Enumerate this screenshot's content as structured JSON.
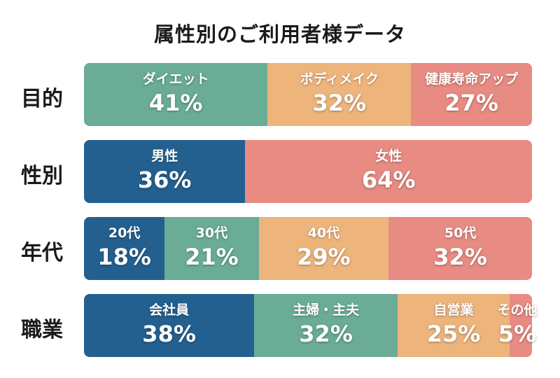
{
  "chart_data": {
    "type": "bar",
    "stacked": "100%",
    "orientation": "horizontal",
    "title": "属性別のご利用者様データ",
    "rows": [
      {
        "label": "目的",
        "segments": [
          {
            "name": "ダイエット",
            "value": 41,
            "value_label": "41%",
            "color": "#6aac96"
          },
          {
            "name": "ボディメイク",
            "value": 32,
            "value_label": "32%",
            "color": "#edb47c"
          },
          {
            "name": "健康寿命アップ",
            "value": 27,
            "value_label": "27%",
            "color": "#e88b82"
          }
        ]
      },
      {
        "label": "性別",
        "segments": [
          {
            "name": "男性",
            "value": 36,
            "value_label": "36%",
            "color": "#23608f"
          },
          {
            "name": "女性",
            "value": 64,
            "value_label": "64%",
            "color": "#e88b82"
          }
        ]
      },
      {
        "label": "年代",
        "segments": [
          {
            "name": "20代",
            "value": 18,
            "value_label": "18%",
            "color": "#23608f"
          },
          {
            "name": "30代",
            "value": 21,
            "value_label": "21%",
            "color": "#6aac96"
          },
          {
            "name": "40代",
            "value": 29,
            "value_label": "29%",
            "color": "#edb47c"
          },
          {
            "name": "50代",
            "value": 32,
            "value_label": "32%",
            "color": "#e88b82"
          }
        ]
      },
      {
        "label": "職業",
        "segments": [
          {
            "name": "会社員",
            "value": 38,
            "value_label": "38%",
            "color": "#23608f"
          },
          {
            "name": "主婦・主夫",
            "value": 32,
            "value_label": "32%",
            "color": "#6aac96"
          },
          {
            "name": "自営業",
            "value": 25,
            "value_label": "25%",
            "color": "#edb47c"
          },
          {
            "name": "その他",
            "value": 5,
            "value_label": "5%",
            "color": "#e88b82"
          }
        ]
      }
    ]
  }
}
